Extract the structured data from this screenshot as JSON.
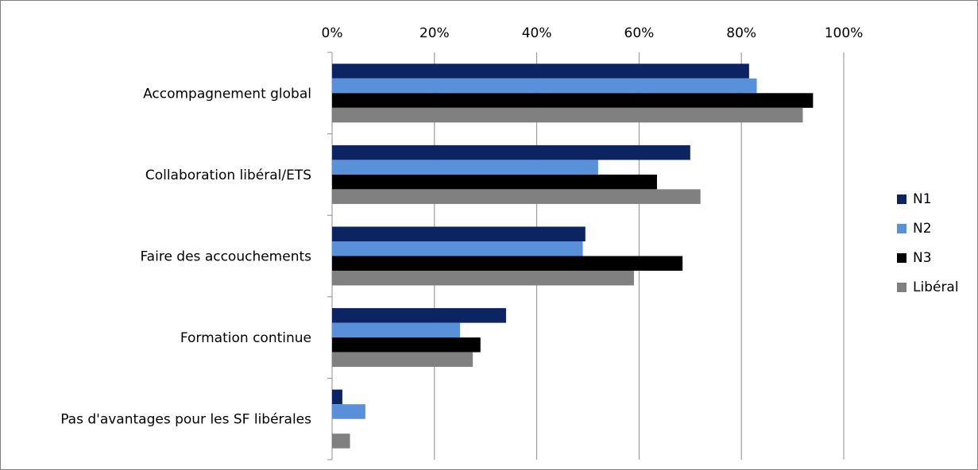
{
  "chart_data": {
    "type": "bar",
    "orientation": "horizontal",
    "categories": [
      "Accompagnement global",
      "Collaboration libéral/ETS",
      "Faire des accouchements",
      "Formation continue",
      "Pas d'avantages pour les SF libérales"
    ],
    "series": [
      {
        "name": "N1",
        "color": "#0c2461",
        "values": [
          81.5,
          70,
          49.5,
          34,
          2
        ]
      },
      {
        "name": "N2",
        "color": "#5891da",
        "values": [
          83,
          52,
          49,
          25,
          6.5
        ]
      },
      {
        "name": "N3",
        "color": "#000000",
        "values": [
          94,
          63.5,
          68.5,
          29,
          0
        ]
      },
      {
        "name": "Libéral",
        "color": "#808080",
        "values": [
          92,
          72,
          59,
          27.5,
          3.5
        ]
      }
    ],
    "xlim": [
      0,
      100
    ],
    "xticks": [
      "0%",
      "20%",
      "40%",
      "60%",
      "80%",
      "100%"
    ],
    "xaxis_position": "top",
    "grid": "vertical",
    "legend_position": "right",
    "title": "",
    "xlabel": "",
    "ylabel": ""
  }
}
